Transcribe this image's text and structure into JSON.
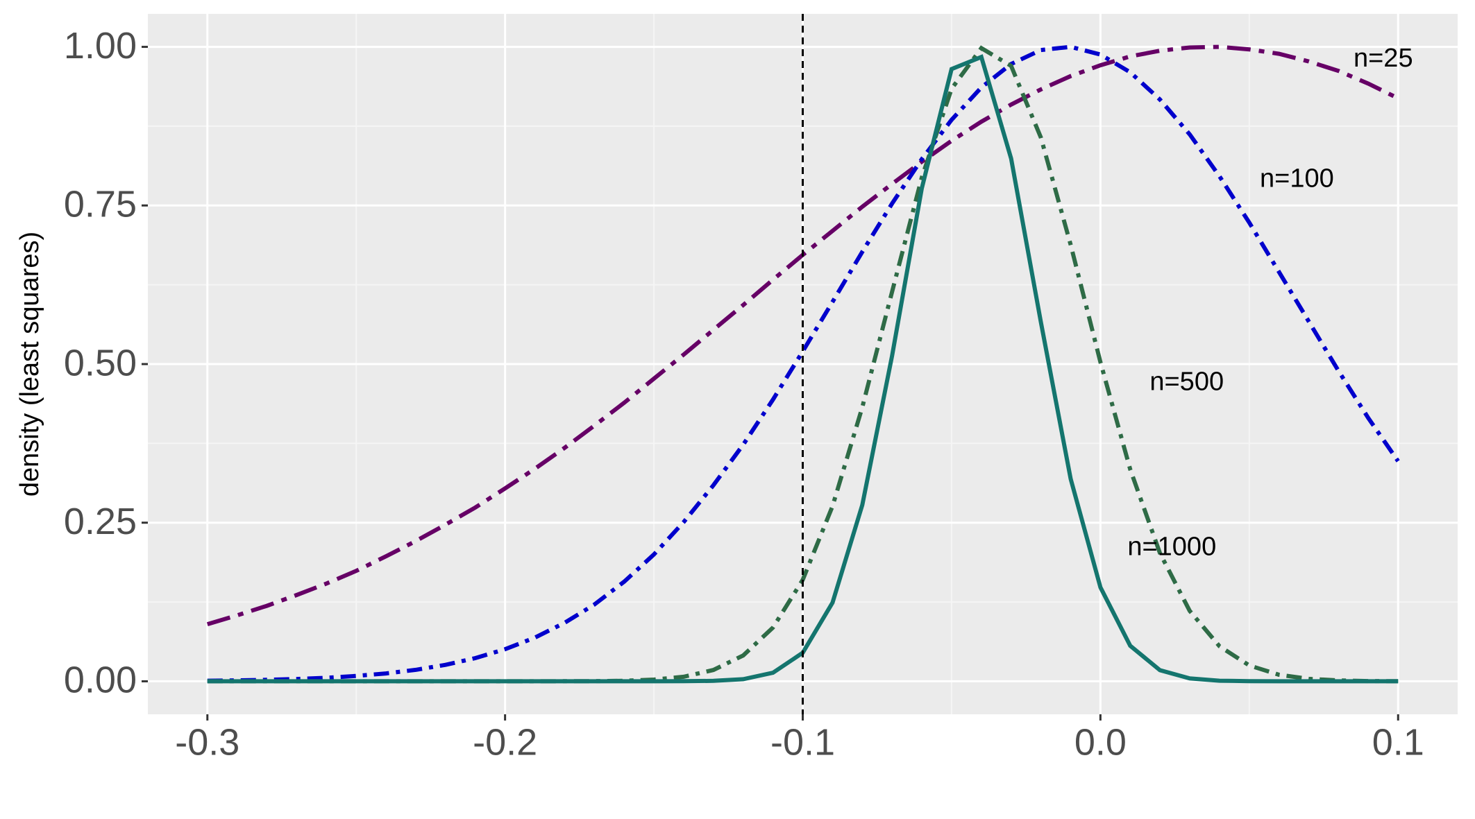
{
  "chart_data": {
    "type": "line",
    "y_label": "density (least squares)",
    "x": [
      -0.3,
      -0.29,
      -0.28,
      -0.27,
      -0.26,
      -0.25,
      -0.24,
      -0.23,
      -0.22,
      -0.21,
      -0.2,
      -0.19,
      -0.18,
      -0.17,
      -0.16,
      -0.15,
      -0.14,
      -0.13,
      -0.12,
      -0.11,
      -0.1,
      -0.09,
      -0.08,
      -0.07,
      -0.06,
      -0.05,
      -0.04,
      -0.03,
      -0.02,
      -0.01,
      0,
      0.01,
      0.02,
      0.03,
      0.04,
      0.05,
      0.06,
      0.07,
      0.08,
      0.09,
      0.1
    ],
    "series": [
      {
        "name": "n=25",
        "color": "#660066",
        "linetype": "longdashdot",
        "values": [
          0.09,
          0.104,
          0.119,
          0.136,
          0.154,
          0.174,
          0.197,
          0.221,
          0.247,
          0.274,
          0.304,
          0.335,
          0.368,
          0.403,
          0.439,
          0.477,
          0.515,
          0.554,
          0.593,
          0.633,
          0.672,
          0.71,
          0.748,
          0.784,
          0.819,
          0.852,
          0.882,
          0.909,
          0.933,
          0.954,
          0.971,
          0.985,
          0.994,
          0.999,
          1,
          0.996,
          0.989,
          0.977,
          0.962,
          0.942,
          0.919
        ],
        "label_x": 0.095,
        "label_y": 0.98
      },
      {
        "name": "n=100",
        "color": "#0000cc",
        "linetype": "dashdot",
        "values": [
          0.0009,
          0.0015,
          0.0023,
          0.0036,
          0.0055,
          0.0084,
          0.0124,
          0.0181,
          0.0259,
          0.0365,
          0.0505,
          0.0688,
          0.0922,
          0.121,
          0.157,
          0.2,
          0.251,
          0.309,
          0.373,
          0.444,
          0.52,
          0.598,
          0.677,
          0.753,
          0.823,
          0.885,
          0.936,
          0.973,
          0.995,
          1,
          0.988,
          0.96,
          0.917,
          0.862,
          0.796,
          0.723,
          0.645,
          0.567,
          0.489,
          0.415,
          0.347
        ],
        "label_x": 0.066,
        "label_y": 0.79
      },
      {
        "name": "n=500",
        "color": "#2e6b46",
        "linetype": "dashdot",
        "values": [
          0,
          0,
          0,
          0,
          0,
          0,
          0,
          0,
          0,
          0,
          0,
          0,
          0.0001,
          0.0002,
          0.0008,
          0.0026,
          0.0071,
          0.0178,
          0.0407,
          0.0847,
          0.16,
          0.276,
          0.432,
          0.614,
          0.794,
          0.934,
          0.998,
          0.97,
          0.857,
          0.688,
          0.503,
          0.334,
          0.202,
          0.111,
          0.0552,
          0.025,
          0.0103,
          0.0039,
          0.0013,
          0.0004,
          0.0001
        ],
        "label_x": 0.029,
        "label_y": 0.47
      },
      {
        "name": "n=1000",
        "color": "#14756e",
        "linetype": "solid",
        "values": [
          0,
          0,
          0,
          0,
          0,
          0,
          0,
          0,
          0,
          0,
          0,
          0,
          0,
          0,
          0,
          0,
          0.0001,
          0.0007,
          0.0033,
          0.0135,
          0.045,
          0.124,
          0.278,
          0.513,
          0.777,
          0.965,
          0.984,
          0.824,
          0.566,
          0.319,
          0.148,
          0.056,
          0.0175,
          0.0045,
          0.0009,
          0.0002,
          0,
          0,
          0,
          0,
          0
        ],
        "label_x": 0.024,
        "label_y": 0.21
      }
    ],
    "vline": -0.1,
    "xlim": [
      -0.32,
      0.12
    ],
    "xticks": [
      -0.3,
      -0.2,
      -0.1,
      {
        "value": 0,
        "label": "0.0"
      },
      0.1
    ],
    "ylim": [
      -0.052,
      1.052
    ],
    "yticks": [
      {
        "value": 0,
        "label": "0.00"
      },
      {
        "value": 0.25,
        "label": "0.25"
      },
      {
        "value": 0.5,
        "label": "0.50"
      },
      {
        "value": 0.75,
        "label": "0.75"
      },
      {
        "value": 1,
        "label": "1.00"
      }
    ],
    "grid": true
  }
}
